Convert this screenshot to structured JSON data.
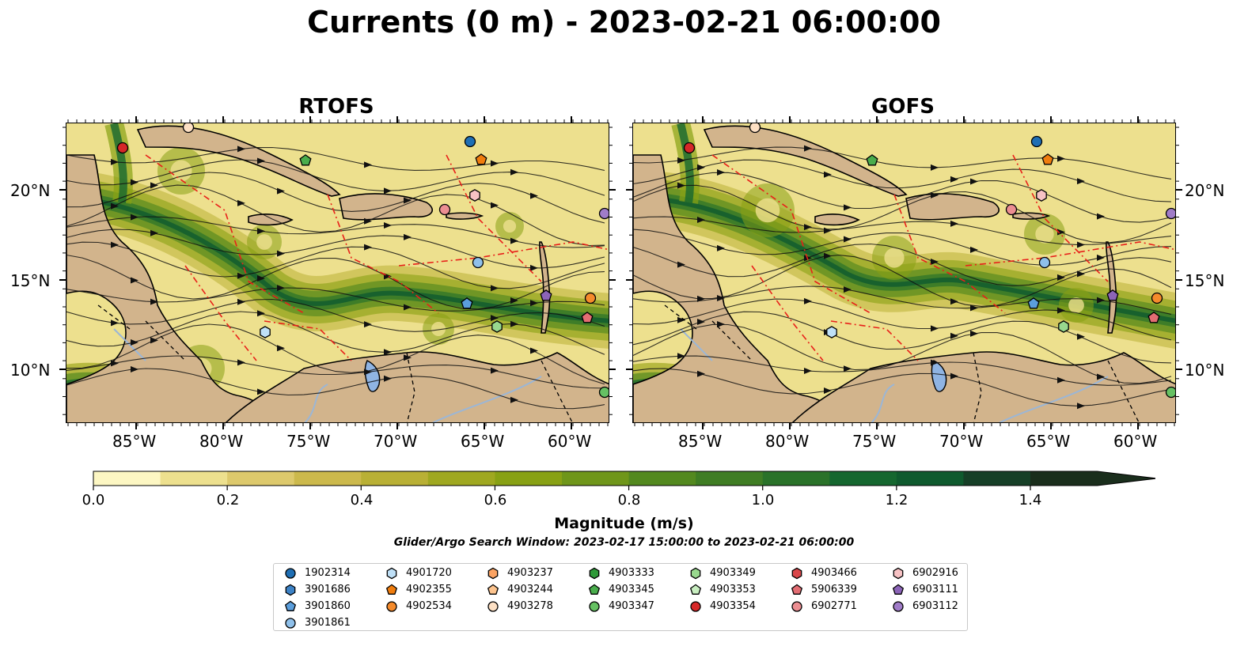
{
  "title": "Currents (0 m) - 2023-02-21 06:00:00",
  "panels": [
    {
      "title": "RTOFS"
    },
    {
      "title": "GOFS"
    }
  ],
  "x_ticks": [
    "85°W",
    "80°W",
    "75°W",
    "70°W",
    "65°W",
    "60°W"
  ],
  "y_ticks": [
    "20°N",
    "15°N",
    "10°N"
  ],
  "colorbar": {
    "label": "Magnitude (m/s)",
    "ticks": [
      "0.0",
      "0.2",
      "0.4",
      "0.6",
      "0.8",
      "1.0",
      "1.2",
      "1.4"
    ],
    "colors": [
      "#fdf7c3",
      "#ede08e",
      "#ddc96c",
      "#ccb94c",
      "#b9b035",
      "#9fa820",
      "#88a114",
      "#6f961a",
      "#53891f",
      "#3f7d24",
      "#2a7229",
      "#15672f",
      "#0f5a2e",
      "#163f27",
      "#1a2e1c"
    ]
  },
  "search_window": "Glider/Argo Search Window: 2023-02-17 15:00:00 to 2023-02-21 06:00:00",
  "legend": [
    {
      "id": "1902314",
      "shape": "circle",
      "color": "#1f6fb4"
    },
    {
      "id": "3901686",
      "shape": "hexagon",
      "color": "#3c82c6"
    },
    {
      "id": "3901860",
      "shape": "pentagon",
      "color": "#5b9edc"
    },
    {
      "id": "3901861",
      "shape": "circle",
      "color": "#8fc0ea"
    },
    {
      "id": "4901720",
      "shape": "hexagon",
      "color": "#bfe0f7"
    },
    {
      "id": "4902355",
      "shape": "pentagon",
      "color": "#f07d0e"
    },
    {
      "id": "4902534",
      "shape": "circle",
      "color": "#f58b2c"
    },
    {
      "id": "4903237",
      "shape": "hexagon",
      "color": "#fba363"
    },
    {
      "id": "4903244",
      "shape": "pentagon",
      "color": "#fdc48e"
    },
    {
      "id": "4903278",
      "shape": "circle",
      "color": "#fde0c4"
    },
    {
      "id": "4903333",
      "shape": "hexagon",
      "color": "#2f9a39"
    },
    {
      "id": "4903345",
      "shape": "pentagon",
      "color": "#49ad4c"
    },
    {
      "id": "4903347",
      "shape": "circle",
      "color": "#66c163"
    },
    {
      "id": "4903349",
      "shape": "hexagon",
      "color": "#98d88e"
    },
    {
      "id": "4903353",
      "shape": "pentagon",
      "color": "#c8eec0"
    },
    {
      "id": "4903354",
      "shape": "circle",
      "color": "#d62728"
    },
    {
      "id": "4903466",
      "shape": "hexagon",
      "color": "#d9474a"
    },
    {
      "id": "5906339",
      "shape": "pentagon",
      "color": "#e36d73"
    },
    {
      "id": "6902771",
      "shape": "circle",
      "color": "#ec8e92"
    },
    {
      "id": "6902916",
      "shape": "hexagon",
      "color": "#f7c2c4"
    },
    {
      "id": "6903111",
      "shape": "pentagon",
      "color": "#8c64b8"
    },
    {
      "id": "6903112",
      "shape": "circle",
      "color": "#a07cc8"
    }
  ],
  "land_color": "#d2b48c"
}
